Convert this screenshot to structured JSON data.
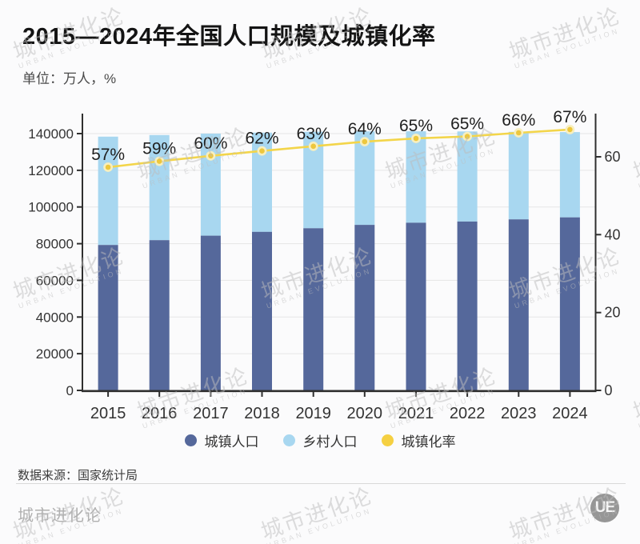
{
  "title": "2015—2024年全国人口规模及城镇化率",
  "subtitle": "单位：万人，%",
  "source": "数据来源：国家统计局",
  "footer_brand": "城市进化论",
  "logo_text": "UE",
  "watermark": {
    "cn": "城市进化论",
    "en": "URBAN EVOLUTION"
  },
  "colors": {
    "urban_bar": "#55689b",
    "rural_bar": "#a8d7f0",
    "rate_line": "#f3d54a",
    "rate_dot": "#edc73d",
    "rate_dot_ring": "#f8efbe",
    "axis": "#2f2f2f",
    "grid": "#e6e6e6",
    "tick_label": "#333333",
    "point_label": "#1f1f1f"
  },
  "legend": {
    "items": [
      {
        "label": "城镇人口",
        "color": "#55689b"
      },
      {
        "label": "乡村人口",
        "color": "#a8d7f0"
      },
      {
        "label": "城镇化率",
        "color": "#f5d042"
      }
    ]
  },
  "chart_data": {
    "type": "bar",
    "subtype": "stacked-bars-with-line",
    "title": "2015—2024年全国人口规模及城镇化率",
    "units": "万人，%",
    "categories": [
      "2015",
      "2016",
      "2017",
      "2018",
      "2019",
      "2020",
      "2021",
      "2022",
      "2023",
      "2024"
    ],
    "series": [
      {
        "name": "城镇人口",
        "type": "bar",
        "axis": "left",
        "values": [
          79302,
          81924,
          84343,
          86433,
          88426,
          90220,
          91425,
          92071,
          93267,
          94350
        ]
      },
      {
        "name": "乡村人口",
        "type": "bar",
        "axis": "left",
        "values": [
          59024,
          57308,
          55668,
          54108,
          52582,
          50992,
          49835,
          49104,
          47700,
          46478
        ]
      },
      {
        "name": "城镇化率",
        "type": "line",
        "axis": "right",
        "values": [
          57.33,
          58.84,
          60.24,
          61.5,
          62.71,
          63.89,
          64.72,
          65.22,
          66.16,
          67.0
        ],
        "point_labels": [
          "57%",
          "59%",
          "60%",
          "62%",
          "63%",
          "64%",
          "65%",
          "65%",
          "66%",
          "67%"
        ]
      }
    ],
    "left_axis": {
      "ticks": [
        0,
        20000,
        40000,
        60000,
        80000,
        100000,
        120000,
        140000
      ],
      "max": 140000
    },
    "right_axis": {
      "ticks": [
        0,
        20,
        40,
        60
      ],
      "max_tick": 60
    },
    "grid": "horizontal-only",
    "legend_position": "bottom"
  }
}
